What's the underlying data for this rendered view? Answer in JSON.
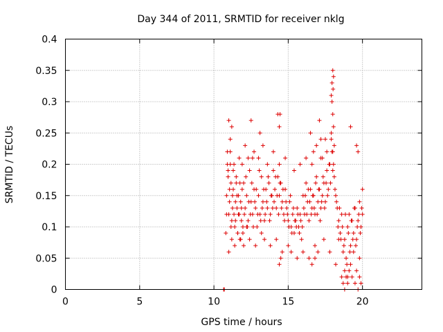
{
  "colors": {
    "series": "#dd0000",
    "grid": "#a0a0a0",
    "axis": "#000000"
  },
  "chart_data": {
    "type": "scatter",
    "title": "Day 344 of 2011, SRMTID for receiver nklg",
    "xlabel": "GPS time / hours",
    "ylabel": "SRMTID / TECUs",
    "xlim": [
      0,
      24
    ],
    "ylim": [
      0,
      0.4
    ],
    "xticks": [
      0,
      5,
      10,
      15,
      20
    ],
    "xtick_labels": [
      "0",
      "5",
      "10",
      "15",
      "20"
    ],
    "yticks": [
      0,
      0.05,
      0.1,
      0.15,
      0.2,
      0.25,
      0.3,
      0.35,
      0.4
    ],
    "ytick_labels": [
      "0",
      "0.05",
      "0.1",
      "0.15",
      "0.2",
      "0.25",
      "0.3",
      "0.35",
      "0.4"
    ],
    "grid": true,
    "marker": "+",
    "series": [
      {
        "name": "SRMTID",
        "x": [
          10.65,
          10.7,
          10.8,
          10.85,
          10.9,
          10.95,
          11.0,
          11.05,
          11.1,
          11.15,
          11.2,
          11.25,
          11.3,
          11.35,
          11.4,
          11.45,
          11.5,
          11.55,
          11.6,
          11.65,
          11.7,
          11.75,
          11.8,
          11.85,
          11.9,
          11.95,
          12.0,
          12.1,
          12.2,
          12.3,
          12.4,
          12.5,
          12.6,
          12.7,
          12.8,
          12.9,
          13.0,
          13.1,
          13.2,
          13.3,
          13.4,
          13.5,
          13.6,
          13.7,
          13.8,
          13.9,
          14.0,
          14.1,
          14.2,
          14.3,
          14.4,
          14.5,
          14.6,
          14.7,
          14.8,
          14.9,
          15.0,
          15.1,
          15.2,
          15.3,
          15.4,
          15.5,
          15.6,
          15.7,
          15.8,
          15.9,
          16.0,
          16.1,
          16.2,
          16.3,
          16.4,
          16.5,
          16.6,
          16.7,
          16.8,
          16.9,
          17.0,
          17.1,
          17.2,
          17.3,
          17.4,
          17.5,
          17.6,
          17.7,
          17.8,
          17.9,
          18.0,
          18.1,
          18.2,
          18.3,
          18.4,
          18.5,
          18.6,
          18.7,
          18.8,
          18.9,
          19.0,
          19.1,
          19.2,
          19.3,
          19.4,
          19.5,
          19.6,
          19.7,
          19.8,
          19.9,
          20.0,
          10.85,
          10.95,
          11.05,
          11.15,
          11.25,
          11.35,
          11.45,
          11.55,
          11.65,
          11.75,
          11.85,
          11.95,
          12.05,
          12.15,
          12.25,
          12.35,
          12.45,
          12.55,
          12.65,
          12.75,
          12.85,
          12.95,
          13.05,
          13.15,
          13.25,
          13.35,
          13.45,
          13.55,
          13.65,
          13.75,
          13.85,
          13.95,
          14.05,
          14.15,
          14.25,
          14.35,
          14.45,
          14.55,
          14.65,
          14.75,
          14.85,
          14.95,
          15.05,
          15.15,
          15.25,
          15.35,
          15.45,
          15.55,
          15.65,
          15.75,
          15.85,
          15.95,
          16.05,
          16.15,
          16.25,
          16.35,
          16.45,
          16.55,
          16.65,
          16.75,
          16.85,
          16.95,
          17.05,
          17.15,
          17.25,
          17.35,
          17.45,
          17.55,
          17.65,
          17.75,
          17.85,
          17.95,
          18.05,
          18.15,
          18.25,
          18.35,
          18.45,
          18.55,
          18.65,
          18.75,
          18.85,
          18.95,
          19.05,
          19.15,
          19.25,
          19.35,
          19.45,
          19.55,
          19.65,
          19.75,
          19.85,
          19.95,
          10.9,
          11.0,
          11.1,
          11.2,
          11.3,
          11.4,
          11.5,
          11.6,
          11.7,
          11.8,
          11.9,
          12.0,
          12.2,
          12.4,
          12.6,
          12.8,
          13.0,
          13.2,
          13.4,
          13.6,
          13.8,
          14.0,
          14.2,
          14.4,
          14.6,
          14.8,
          15.0,
          15.2,
          15.4,
          15.6,
          15.8,
          16.0,
          16.2,
          16.4,
          16.6,
          16.8,
          17.0,
          17.2,
          17.4,
          17.6,
          17.8,
          18.0,
          18.2,
          18.4,
          18.6,
          18.8,
          19.0,
          19.2,
          19.4,
          19.6,
          19.8,
          20.0,
          11.0,
          11.1,
          11.2,
          12.1,
          12.3,
          12.5,
          12.7,
          13.1,
          13.3,
          14.3,
          14.4,
          14.45,
          16.5,
          16.7,
          16.9,
          17.1,
          17.2,
          17.3,
          17.5,
          17.9,
          17.95,
          18.0,
          18.05,
          18.1,
          19.7,
          17.9,
          17.95,
          18.0,
          18.02,
          18.05,
          18.7,
          18.8,
          18.9,
          19.0,
          19.1,
          19.3,
          19.5,
          19.7,
          19.8,
          19.9,
          14.4,
          14.5,
          16.6,
          16.8,
          19.2,
          19.6
        ],
        "y": [
          0.0,
          0.0,
          0.09,
          0.15,
          0.22,
          0.18,
          0.12,
          0.14,
          0.2,
          0.17,
          0.11,
          0.13,
          0.16,
          0.12,
          0.1,
          0.14,
          0.18,
          0.13,
          0.09,
          0.15,
          0.12,
          0.08,
          0.14,
          0.11,
          0.16,
          0.1,
          0.17,
          0.13,
          0.15,
          0.11,
          0.19,
          0.14,
          0.12,
          0.16,
          0.13,
          0.1,
          0.15,
          0.12,
          0.18,
          0.14,
          0.11,
          0.16,
          0.13,
          0.17,
          0.12,
          0.15,
          0.19,
          0.16,
          0.13,
          0.18,
          0.15,
          0.17,
          0.14,
          0.12,
          0.16,
          0.13,
          0.11,
          0.14,
          0.1,
          0.12,
          0.09,
          0.11,
          0.13,
          0.1,
          0.12,
          0.08,
          0.15,
          0.12,
          0.17,
          0.14,
          0.11,
          0.16,
          0.13,
          0.15,
          0.12,
          0.18,
          0.14,
          0.16,
          0.13,
          0.15,
          0.17,
          0.14,
          0.19,
          0.16,
          0.2,
          0.24,
          0.22,
          0.18,
          0.15,
          0.13,
          0.11,
          0.09,
          0.12,
          0.06,
          0.08,
          0.05,
          0.1,
          0.12,
          0.07,
          0.11,
          0.09,
          0.13,
          0.08,
          0.11,
          0.14,
          0.1,
          0.12,
          0.12,
          0.19,
          0.16,
          0.1,
          0.15,
          0.2,
          0.11,
          0.15,
          0.12,
          0.17,
          0.13,
          0.09,
          0.12,
          0.18,
          0.1,
          0.14,
          0.12,
          0.17,
          0.1,
          0.14,
          0.16,
          0.12,
          0.19,
          0.11,
          0.13,
          0.16,
          0.12,
          0.14,
          0.18,
          0.11,
          0.15,
          0.13,
          0.14,
          0.18,
          0.15,
          0.12,
          0.17,
          0.13,
          0.16,
          0.11,
          0.14,
          0.12,
          0.1,
          0.15,
          0.09,
          0.13,
          0.11,
          0.1,
          0.12,
          0.09,
          0.11,
          0.1,
          0.13,
          0.15,
          0.12,
          0.16,
          0.14,
          0.12,
          0.15,
          0.13,
          0.17,
          0.12,
          0.16,
          0.11,
          0.14,
          0.18,
          0.13,
          0.17,
          0.15,
          0.2,
          0.17,
          0.22,
          0.2,
          0.16,
          0.14,
          0.1,
          0.13,
          0.08,
          0.1,
          0.07,
          0.12,
          0.04,
          0.09,
          0.06,
          0.11,
          0.08,
          0.13,
          0.07,
          0.1,
          0.12,
          0.09,
          0.13,
          0.2,
          0.06,
          0.22,
          0.08,
          0.19,
          0.07,
          0.17,
          0.09,
          0.21,
          0.08,
          0.2,
          0.07,
          0.1,
          0.08,
          0.21,
          0.07,
          0.21,
          0.09,
          0.08,
          0.2,
          0.07,
          0.22,
          0.08,
          0.2,
          0.06,
          0.21,
          0.07,
          0.06,
          0.19,
          0.05,
          0.2,
          0.06,
          0.21,
          0.05,
          0.2,
          0.07,
          0.06,
          0.21,
          0.08,
          0.22,
          0.06,
          0.19,
          0.04,
          0.08,
          0.02,
          0.03,
          0.02,
          0.04,
          0.06,
          0.03,
          0.05,
          0.16,
          0.27,
          0.24,
          0.26,
          0.23,
          0.21,
          0.27,
          0.22,
          0.25,
          0.23,
          0.28,
          0.26,
          0.28,
          0.25,
          0.22,
          0.23,
          0.27,
          0.24,
          0.21,
          0.24,
          0.25,
          0.3,
          0.28,
          0.26,
          0.23,
          0.22,
          0.31,
          0.33,
          0.35,
          0.32,
          0.34,
          0.01,
          0.0,
          0.02,
          0.01,
          0.03,
          0.02,
          0.01,
          0.0,
          0.02,
          0.01,
          0.04,
          0.05,
          0.04,
          0.05,
          0.26,
          0.23
        ]
      }
    ]
  }
}
